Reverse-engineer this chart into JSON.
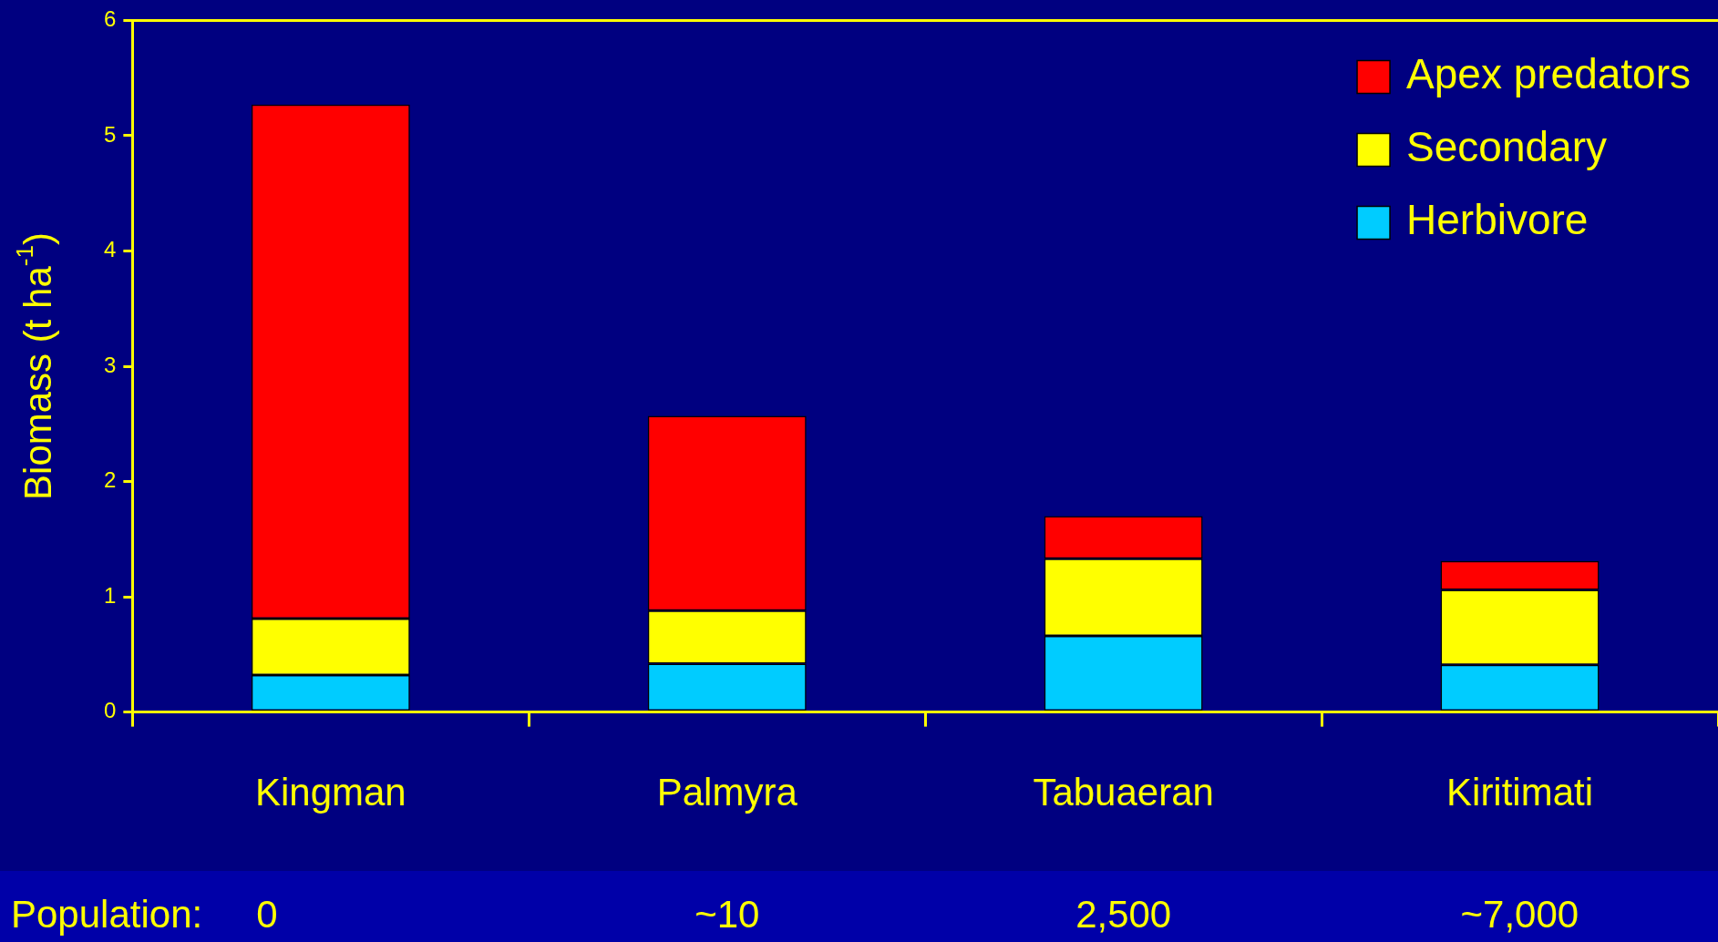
{
  "chart_data": {
    "type": "bar",
    "stacked": true,
    "categories": [
      "Kingman",
      "Palmyra",
      "Tabuaeran",
      "Kiritimati"
    ],
    "ylabel": "Biomass (t ha$^{-1}$)",
    "ylim": [
      0,
      6
    ],
    "yticks": [
      0,
      1,
      2,
      3,
      4,
      5,
      6
    ],
    "grid": false,
    "legend": "top right",
    "series": [
      {
        "name": "Herbivore",
        "color": "#00ccff",
        "values": [
          0.32,
          0.42,
          0.66,
          0.41
        ]
      },
      {
        "name": "Secondary",
        "color": "#ffff00",
        "values": [
          0.49,
          0.46,
          0.67,
          0.65
        ]
      },
      {
        "name": "Apex predators",
        "color": "#ff0000",
        "values": [
          4.46,
          1.69,
          0.37,
          0.25
        ]
      }
    ],
    "annotations": [
      "Population:",
      "0",
      "~10",
      "2,500",
      "~7,000"
    ]
  }
}
